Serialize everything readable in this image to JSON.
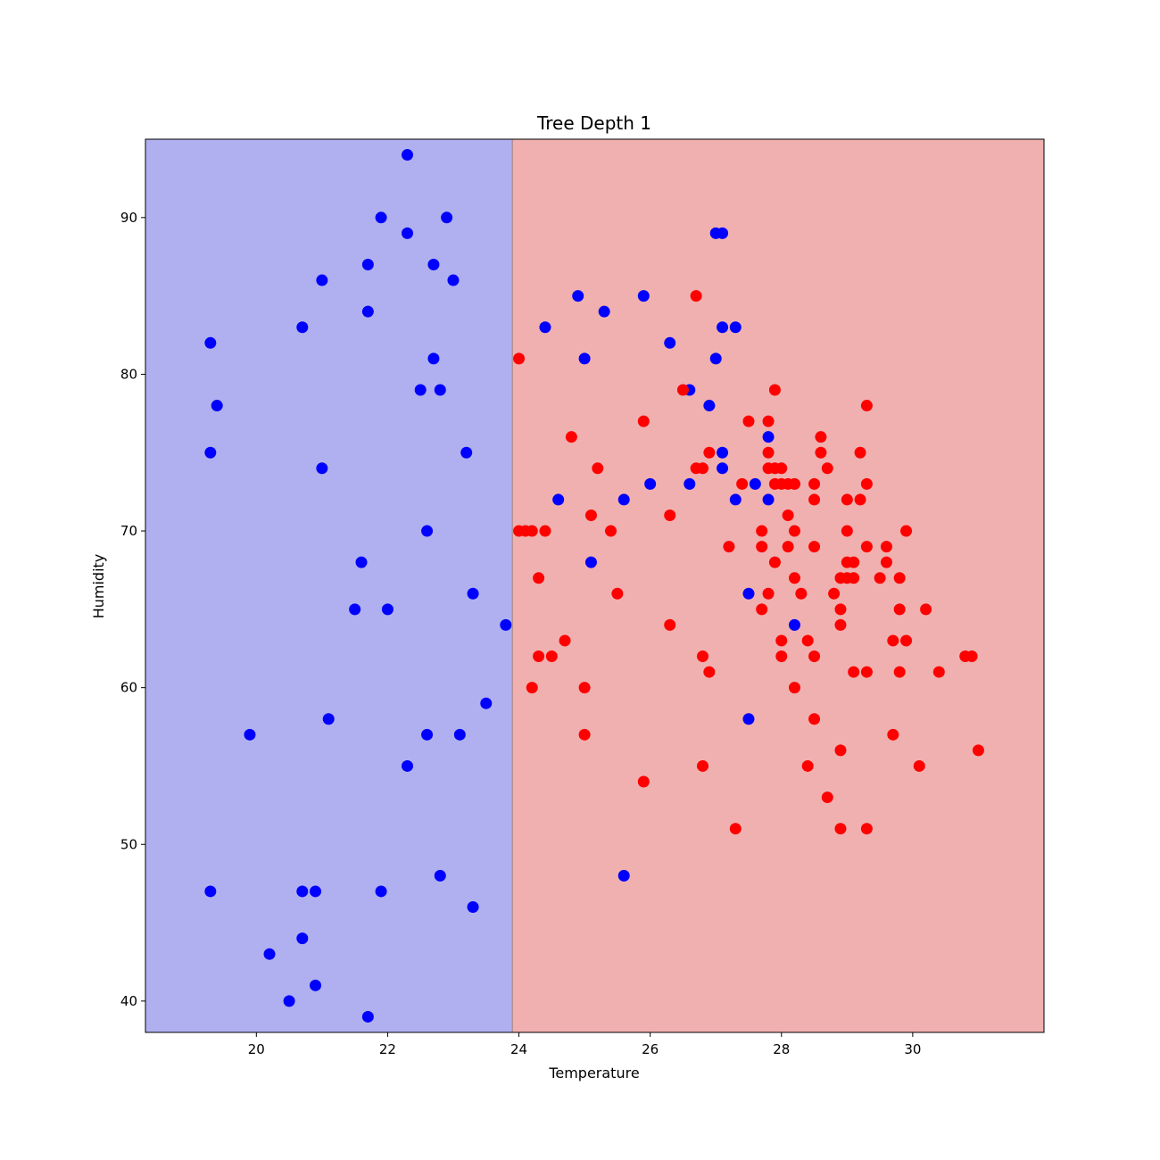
{
  "chart_data": {
    "type": "scatter",
    "title": "Tree Depth 1",
    "xlabel": "Temperature",
    "ylabel": "Humidity",
    "xlim": [
      18.31,
      32.0
    ],
    "ylim": [
      38.0,
      95.0
    ],
    "xticks": [
      20,
      22,
      24,
      26,
      28,
      30
    ],
    "yticks": [
      40,
      50,
      60,
      70,
      80,
      90
    ],
    "grid": false,
    "decision_boundary": {
      "feature": "Temperature",
      "threshold": 23.9,
      "left_color": "#b0b0f0",
      "right_color": "#f0b0b0",
      "line_color": "#a08080"
    },
    "series": [
      {
        "color": "#0000ff",
        "points": [
          [
            22.3,
            94
          ],
          [
            21.9,
            90
          ],
          [
            22.9,
            90
          ],
          [
            22.3,
            89
          ],
          [
            21.7,
            87
          ],
          [
            22.7,
            87
          ],
          [
            21.0,
            86
          ],
          [
            23.0,
            86
          ],
          [
            21.7,
            84
          ],
          [
            20.7,
            83
          ],
          [
            19.3,
            82
          ],
          [
            22.7,
            81
          ],
          [
            19.4,
            78
          ],
          [
            22.5,
            79
          ],
          [
            22.8,
            79
          ],
          [
            19.3,
            75
          ],
          [
            23.2,
            75
          ],
          [
            21.0,
            74
          ],
          [
            22.6,
            70
          ],
          [
            21.6,
            68
          ],
          [
            23.3,
            66
          ],
          [
            21.5,
            65
          ],
          [
            22.0,
            65
          ],
          [
            23.8,
            64
          ],
          [
            23.5,
            59
          ],
          [
            21.1,
            58
          ],
          [
            19.9,
            57
          ],
          [
            22.6,
            57
          ],
          [
            23.1,
            57
          ],
          [
            22.3,
            55
          ],
          [
            19.3,
            47
          ],
          [
            20.7,
            47
          ],
          [
            20.9,
            47
          ],
          [
            21.9,
            47
          ],
          [
            22.8,
            48
          ],
          [
            23.3,
            46
          ],
          [
            20.7,
            44
          ],
          [
            20.2,
            43
          ],
          [
            20.9,
            41
          ],
          [
            20.5,
            40
          ],
          [
            21.7,
            39
          ],
          [
            27.0,
            89
          ],
          [
            27.1,
            89
          ],
          [
            24.9,
            85
          ],
          [
            25.9,
            85
          ],
          [
            25.3,
            84
          ],
          [
            24.4,
            83
          ],
          [
            27.1,
            83
          ],
          [
            27.3,
            83
          ],
          [
            26.3,
            82
          ],
          [
            25.0,
            81
          ],
          [
            27.0,
            81
          ],
          [
            26.6,
            79
          ],
          [
            26.9,
            78
          ],
          [
            27.8,
            76
          ],
          [
            27.1,
            75
          ],
          [
            27.1,
            74
          ],
          [
            24.6,
            72
          ],
          [
            25.6,
            72
          ],
          [
            27.3,
            72
          ],
          [
            27.8,
            72
          ],
          [
            26.0,
            73
          ],
          [
            26.6,
            73
          ],
          [
            27.6,
            73
          ],
          [
            25.1,
            68
          ],
          [
            27.5,
            66
          ],
          [
            28.2,
            64
          ],
          [
            27.5,
            58
          ],
          [
            25.6,
            48
          ]
        ]
      },
      {
        "color": "#ff0000",
        "points": [
          [
            24.0,
            81
          ],
          [
            26.7,
            85
          ],
          [
            26.5,
            79
          ],
          [
            27.9,
            79
          ],
          [
            25.9,
            77
          ],
          [
            27.5,
            77
          ],
          [
            27.8,
            77
          ],
          [
            29.3,
            78
          ],
          [
            24.8,
            76
          ],
          [
            28.6,
            76
          ],
          [
            26.9,
            75
          ],
          [
            27.8,
            75
          ],
          [
            28.6,
            75
          ],
          [
            29.2,
            75
          ],
          [
            25.2,
            74
          ],
          [
            26.7,
            74
          ],
          [
            26.8,
            74
          ],
          [
            27.8,
            74
          ],
          [
            27.9,
            74
          ],
          [
            28.0,
            74
          ],
          [
            28.7,
            74
          ],
          [
            27.4,
            73
          ],
          [
            27.9,
            73
          ],
          [
            28.0,
            73
          ],
          [
            28.1,
            73
          ],
          [
            28.2,
            73
          ],
          [
            28.5,
            73
          ],
          [
            29.3,
            73
          ],
          [
            28.5,
            72
          ],
          [
            29.0,
            72
          ],
          [
            29.2,
            72
          ],
          [
            25.1,
            71
          ],
          [
            26.3,
            71
          ],
          [
            28.1,
            71
          ],
          [
            24.0,
            70
          ],
          [
            24.1,
            70
          ],
          [
            24.2,
            70
          ],
          [
            24.4,
            70
          ],
          [
            25.4,
            70
          ],
          [
            27.7,
            70
          ],
          [
            28.2,
            70
          ],
          [
            29.0,
            70
          ],
          [
            29.9,
            70
          ],
          [
            27.2,
            69
          ],
          [
            27.7,
            69
          ],
          [
            28.1,
            69
          ],
          [
            28.5,
            69
          ],
          [
            29.3,
            69
          ],
          [
            29.6,
            69
          ],
          [
            27.9,
            68
          ],
          [
            29.0,
            68
          ],
          [
            29.1,
            68
          ],
          [
            29.6,
            68
          ],
          [
            24.3,
            67
          ],
          [
            28.2,
            67
          ],
          [
            28.9,
            67
          ],
          [
            29.0,
            67
          ],
          [
            29.1,
            67
          ],
          [
            29.5,
            67
          ],
          [
            29.8,
            67
          ],
          [
            25.5,
            66
          ],
          [
            27.8,
            66
          ],
          [
            28.3,
            66
          ],
          [
            28.8,
            66
          ],
          [
            27.7,
            65
          ],
          [
            28.9,
            65
          ],
          [
            29.8,
            65
          ],
          [
            30.2,
            65
          ],
          [
            26.3,
            64
          ],
          [
            28.9,
            64
          ],
          [
            24.7,
            63
          ],
          [
            28.0,
            63
          ],
          [
            28.4,
            63
          ],
          [
            29.7,
            63
          ],
          [
            29.9,
            63
          ],
          [
            24.3,
            62
          ],
          [
            24.5,
            62
          ],
          [
            26.8,
            62
          ],
          [
            28.0,
            62
          ],
          [
            28.5,
            62
          ],
          [
            30.8,
            62
          ],
          [
            30.9,
            62
          ],
          [
            26.9,
            61
          ],
          [
            29.1,
            61
          ],
          [
            29.3,
            61
          ],
          [
            29.8,
            61
          ],
          [
            30.4,
            61
          ],
          [
            24.2,
            60
          ],
          [
            25.0,
            60
          ],
          [
            28.2,
            60
          ],
          [
            28.5,
            58
          ],
          [
            25.0,
            57
          ],
          [
            29.7,
            57
          ],
          [
            28.9,
            56
          ],
          [
            31.0,
            56
          ],
          [
            26.8,
            55
          ],
          [
            28.4,
            55
          ],
          [
            30.1,
            55
          ],
          [
            25.9,
            54
          ],
          [
            28.7,
            53
          ],
          [
            27.3,
            51
          ],
          [
            28.9,
            51
          ],
          [
            29.3,
            51
          ]
        ]
      }
    ]
  }
}
